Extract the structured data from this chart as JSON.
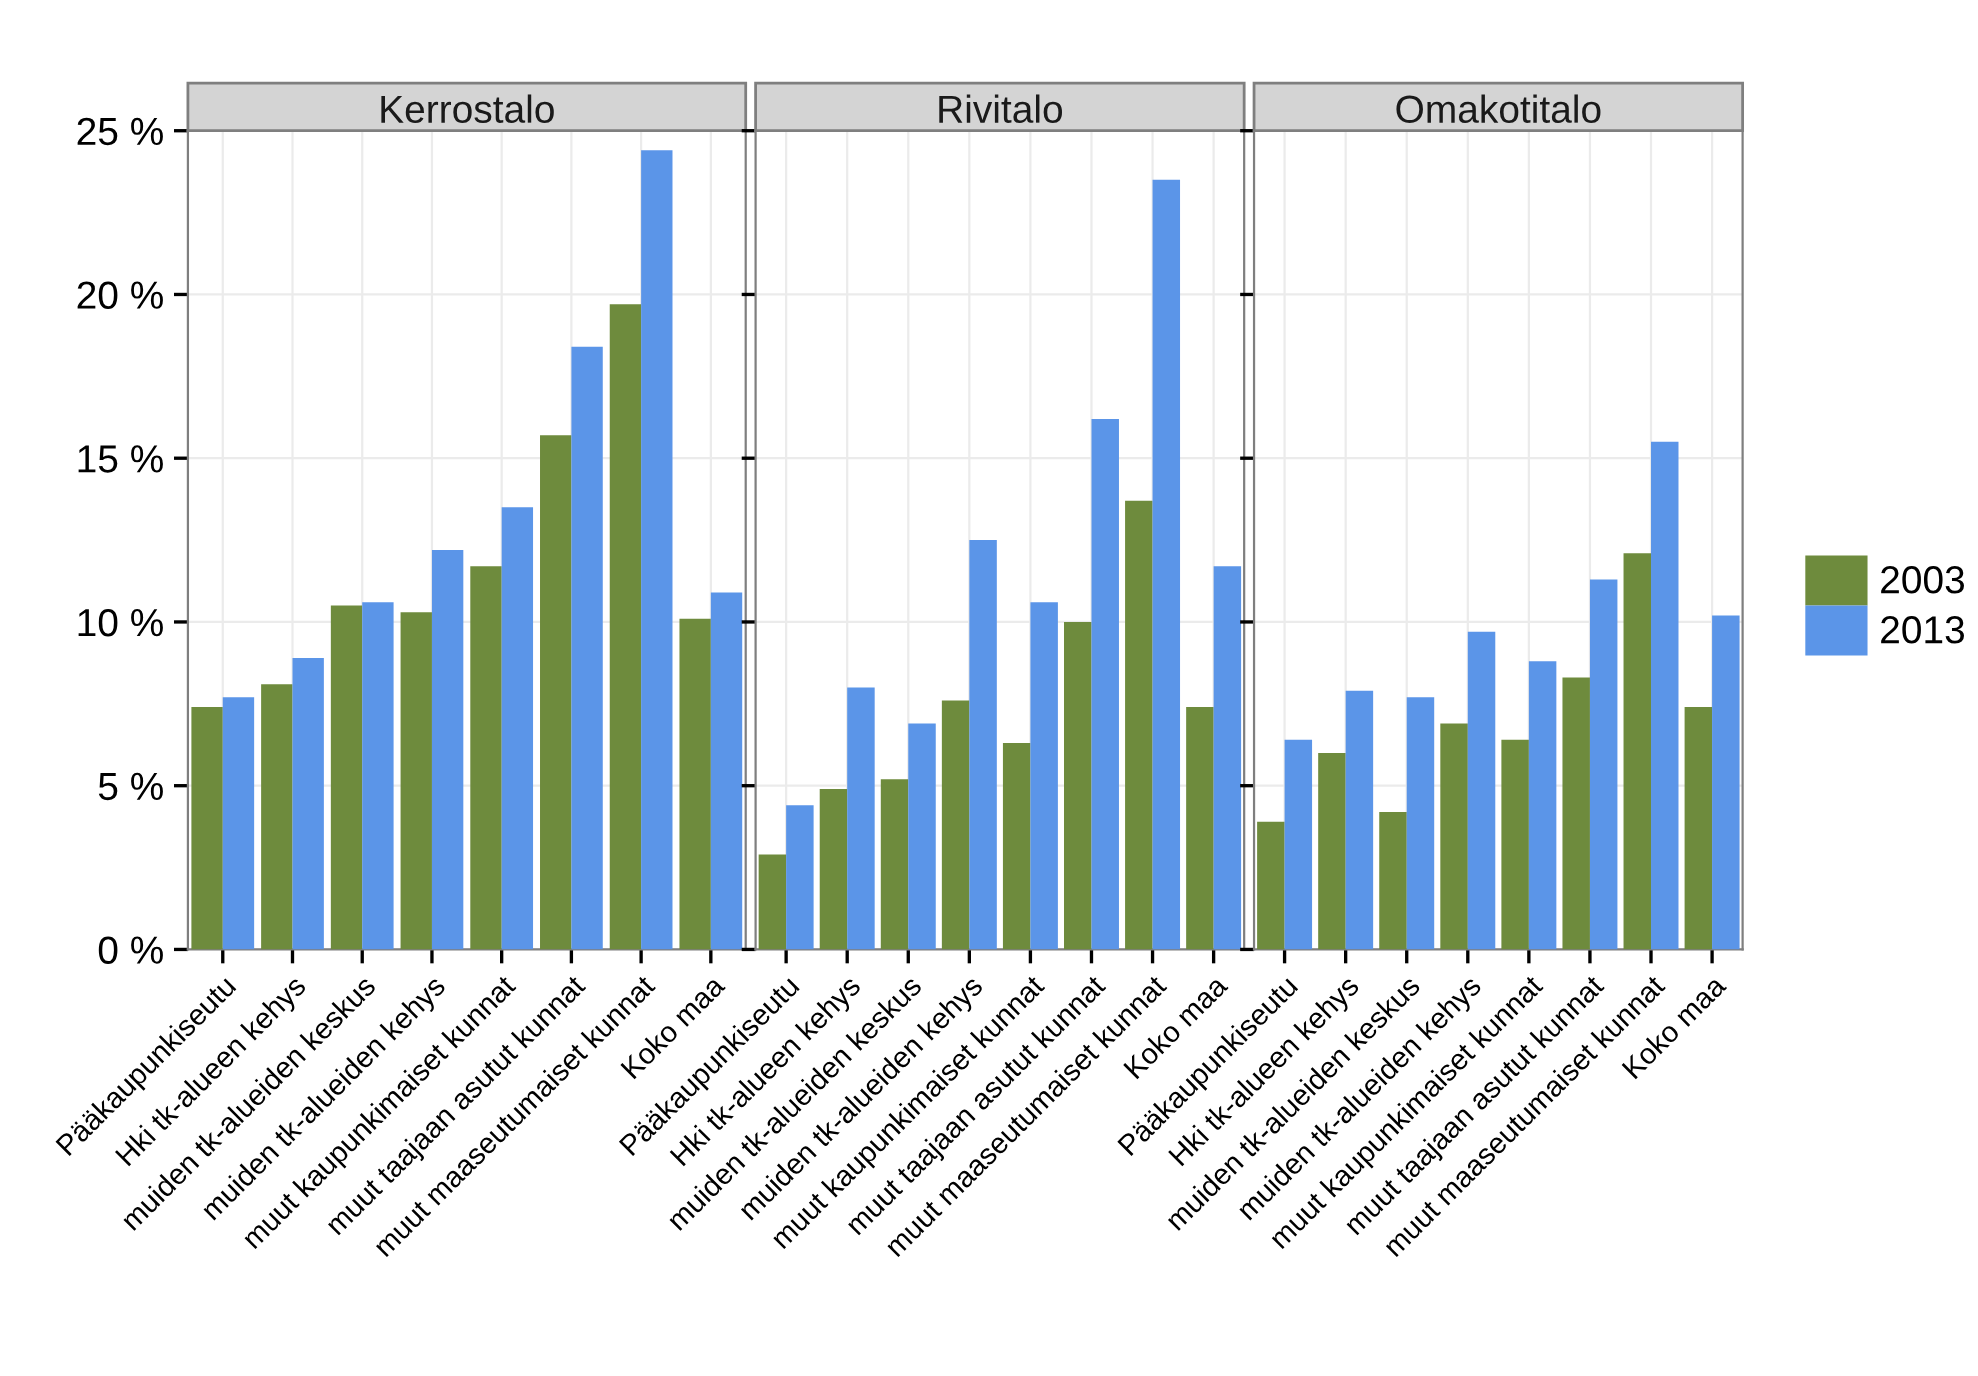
{
  "chart_data": [
    {
      "type": "bar",
      "title": "Kerrostalo",
      "categories": [
        "Pääkaupunkiseutu",
        "Hki tk-alueen kehys",
        "muiden tk-alueiden keskus",
        "muiden tk-alueiden kehys",
        "muut kaupunkimaiset kunnat",
        "muut taajaan asutut kunnat",
        "muut maaseutumaiset kunnat",
        "Koko maa"
      ],
      "series": [
        {
          "name": "2003",
          "color": "#6e8b3d",
          "values": [
            7.4,
            8.1,
            10.5,
            10.3,
            11.7,
            15.7,
            19.7,
            10.1
          ]
        },
        {
          "name": "2013",
          "color": "#5b95e8",
          "values": [
            7.7,
            8.9,
            10.6,
            12.2,
            13.5,
            18.4,
            24.4,
            10.9
          ]
        }
      ],
      "ylim": [
        0,
        25
      ],
      "yticks": [
        {
          "value": 0,
          "label": "0 %"
        },
        {
          "value": 5,
          "label": "5 %"
        },
        {
          "value": 10,
          "label": "10 %"
        },
        {
          "value": 15,
          "label": "15 %"
        },
        {
          "value": 20,
          "label": "20 %"
        },
        {
          "value": 25,
          "label": "25 %"
        }
      ],
      "grid": true,
      "legend": "right"
    },
    {
      "type": "bar",
      "title": "Rivitalo",
      "categories": [
        "Pääkaupunkiseutu",
        "Hki tk-alueen kehys",
        "muiden tk-alueiden keskus",
        "muiden tk-alueiden kehys",
        "muut kaupunkimaiset kunnat",
        "muut taajaan asutut kunnat",
        "muut maaseutumaiset kunnat",
        "Koko maa"
      ],
      "series": [
        {
          "name": "2003",
          "color": "#6e8b3d",
          "values": [
            2.9,
            4.9,
            5.2,
            7.6,
            6.3,
            10.0,
            13.7,
            7.4
          ]
        },
        {
          "name": "2013",
          "color": "#5b95e8",
          "values": [
            4.4,
            8.0,
            6.9,
            12.5,
            10.6,
            16.2,
            23.5,
            11.7
          ]
        }
      ],
      "ylim": [
        0,
        25
      ],
      "yticks": [
        0,
        5,
        10,
        15,
        20,
        25
      ],
      "tick_labels": "x",
      "grid": true
    },
    {
      "type": "bar",
      "title": "Omakotitalo",
      "categories": [
        "Pääkaupunkiseutu",
        "Hki tk-alueen kehys",
        "muiden tk-alueiden keskus",
        "muiden tk-alueiden kehys",
        "muut kaupunkimaiset kunnat",
        "muut taajaan asutut kunnat",
        "muut maaseutumaiset kunnat",
        "Koko maa"
      ],
      "series": [
        {
          "name": "2003",
          "color": "#6e8b3d",
          "values": [
            3.9,
            6.0,
            4.2,
            6.9,
            6.4,
            8.3,
            12.1,
            7.4
          ]
        },
        {
          "name": "2013",
          "color": "#5b95e8",
          "values": [
            6.4,
            7.9,
            7.7,
            9.7,
            8.8,
            11.3,
            15.5,
            10.2
          ]
        }
      ],
      "ylim": [
        0,
        25
      ],
      "yticks": [
        0,
        5,
        10,
        15,
        20,
        25
      ],
      "tick_labels": "x",
      "grid": true
    }
  ]
}
